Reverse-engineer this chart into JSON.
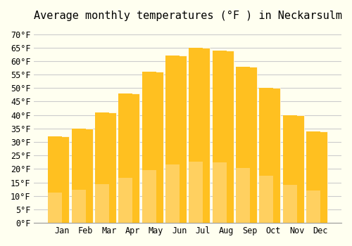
{
  "title": "Average monthly temperatures (°F ) in Neckarsulm",
  "months": [
    "Jan",
    "Feb",
    "Mar",
    "Apr",
    "May",
    "Jun",
    "Jul",
    "Aug",
    "Sep",
    "Oct",
    "Nov",
    "Dec"
  ],
  "values": [
    32,
    35,
    41,
    48,
    56,
    62,
    65,
    64,
    58,
    50,
    40,
    34
  ],
  "bar_color_top": "#FFC020",
  "bar_color_bottom": "#FFD060",
  "background_color": "#FFFFF0",
  "grid_color": "#CCCCCC",
  "ylim": [
    0,
    72
  ],
  "yticks": [
    0,
    5,
    10,
    15,
    20,
    25,
    30,
    35,
    40,
    45,
    50,
    55,
    60,
    65,
    70
  ],
  "title_fontsize": 11,
  "tick_fontsize": 8.5,
  "font_family": "monospace"
}
